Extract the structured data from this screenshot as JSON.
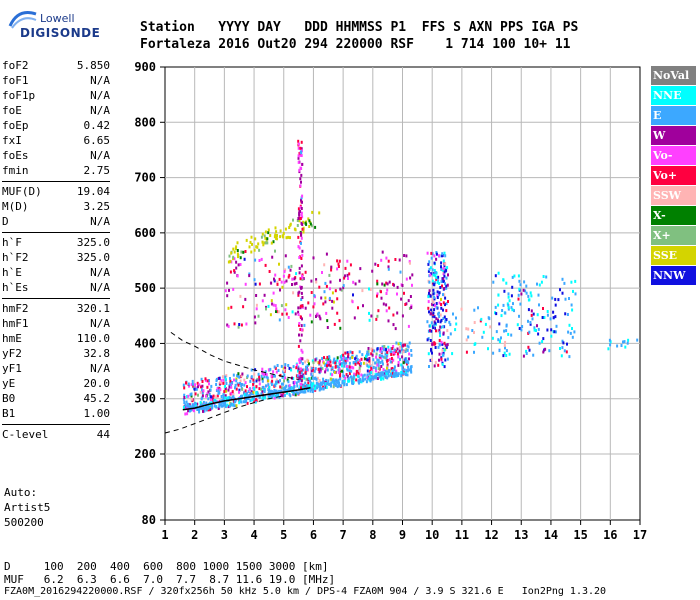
{
  "logo": {
    "line1": "Lowell",
    "line2": "DIGISONDE"
  },
  "header": {
    "labels": "Station   YYYY DAY   DDD HHMMSS P1  FFS S AXN PPS IGA PS",
    "values": "Fortaleza 2016 Out20 294 220000 RSF    1 714 100 10+ 11"
  },
  "params": [
    [
      {
        "k": "foF2",
        "v": "5.850"
      },
      {
        "k": "foF1",
        "v": "N/A"
      },
      {
        "k": "foF1p",
        "v": "N/A"
      },
      {
        "k": "foE",
        "v": "N/A"
      },
      {
        "k": "foEp",
        "v": "0.42"
      },
      {
        "k": "fxI",
        "v": "6.65"
      },
      {
        "k": "foEs",
        "v": "N/A"
      },
      {
        "k": "fmin",
        "v": "2.75"
      }
    ],
    [
      {
        "k": "MUF(D)",
        "v": "19.04"
      },
      {
        "k": "M(D)",
        "v": "3.25"
      },
      {
        "k": "D",
        "v": "N/A"
      }
    ],
    [
      {
        "k": "h`F",
        "v": "325.0"
      },
      {
        "k": "h`F2",
        "v": "325.0"
      },
      {
        "k": "h`E",
        "v": "N/A"
      },
      {
        "k": "h`Es",
        "v": "N/A"
      }
    ],
    [
      {
        "k": "hmF2",
        "v": "320.1"
      },
      {
        "k": "hmF1",
        "v": "N/A"
      },
      {
        "k": "hmE",
        "v": "110.0"
      },
      {
        "k": "yF2",
        "v": "32.8"
      },
      {
        "k": "yF1",
        "v": "N/A"
      },
      {
        "k": "yE",
        "v": "20.0"
      },
      {
        "k": "B0",
        "v": "45.2"
      },
      {
        "k": "B1",
        "v": "1.00"
      }
    ],
    [
      {
        "k": "C-level",
        "v": "44"
      }
    ]
  ],
  "auto": {
    "line1": "Auto:",
    "line2": "Artist5",
    "line3": "500200"
  },
  "legend": [
    {
      "label": "NoVal",
      "bg": "#808080",
      "fg": "#ffffff"
    },
    {
      "label": "NNE",
      "bg": "#00ffff",
      "fg": "#ffffff"
    },
    {
      "label": "E",
      "bg": "#3ca8ff",
      "fg": "#ffffff"
    },
    {
      "label": "W",
      "bg": "#a0009c",
      "fg": "#ffffff"
    },
    {
      "label": "Vo-",
      "bg": "#ff40ff",
      "fg": "#ffffff"
    },
    {
      "label": "Vo+",
      "bg": "#ff0040",
      "fg": "#ffffff"
    },
    {
      "label": "SSW",
      "bg": "#ffb4b4",
      "fg": "#ffffff"
    },
    {
      "label": "X-",
      "bg": "#008000",
      "fg": "#ffffff"
    },
    {
      "label": "X+",
      "bg": "#80c080",
      "fg": "#ffffff"
    },
    {
      "label": "SSE",
      "bg": "#d4d400",
      "fg": "#ffffff"
    },
    {
      "label": "NNW",
      "bg": "#1010e0",
      "fg": "#ffffff"
    }
  ],
  "footer": {
    "d_row": "D     100  200  400  600  800 1000 1500 3000 [km]",
    "muf_row": "MUF   6.2  6.3  6.6  7.0  7.7  8.7 11.6 19.0 [MHz]",
    "file_row": "FZA0M_2016294220000.RSF / 320fx256h 50 kHz 5.0 km / DPS-4 FZA0M 904 / 3.9 S 321.6 E   Ion2Png 1.3.20"
  },
  "chart_data": {
    "type": "scatter",
    "x_ticks": [
      "1",
      "2",
      "3",
      "4",
      "5",
      "6",
      "7",
      "8",
      "9",
      "10",
      "11",
      "12",
      "13",
      "14",
      "15",
      "16",
      "17"
    ],
    "y_ticks": [
      "80",
      "200",
      "300",
      "400",
      "500",
      "600",
      "700",
      "800",
      "900"
    ],
    "x_range": [
      1,
      17
    ],
    "y_range": [
      80,
      900
    ],
    "grid": true,
    "profile_curve": [
      [
        1.6,
        280
      ],
      [
        2,
        283
      ],
      [
        2.5,
        290
      ],
      [
        3,
        296
      ],
      [
        3.5,
        300
      ],
      [
        4,
        304
      ],
      [
        4.5,
        308
      ],
      [
        5,
        312
      ],
      [
        5.5,
        316
      ],
      [
        5.9,
        320
      ]
    ],
    "bounds_upper": [
      [
        1.2,
        420
      ],
      [
        1.6,
        405
      ],
      [
        2,
        395
      ],
      [
        2.5,
        380
      ],
      [
        3,
        368
      ],
      [
        3.5,
        360
      ],
      [
        4,
        352
      ],
      [
        4.5,
        346
      ],
      [
        5,
        340
      ],
      [
        5.5,
        335
      ]
    ],
    "bounds_lower": [
      [
        1,
        238
      ],
      [
        1.5,
        245
      ],
      [
        2,
        255
      ],
      [
        2.5,
        265
      ],
      [
        3,
        275
      ],
      [
        3.5,
        285
      ],
      [
        4,
        293
      ],
      [
        4.5,
        300
      ],
      [
        5,
        305
      ]
    ]
  }
}
